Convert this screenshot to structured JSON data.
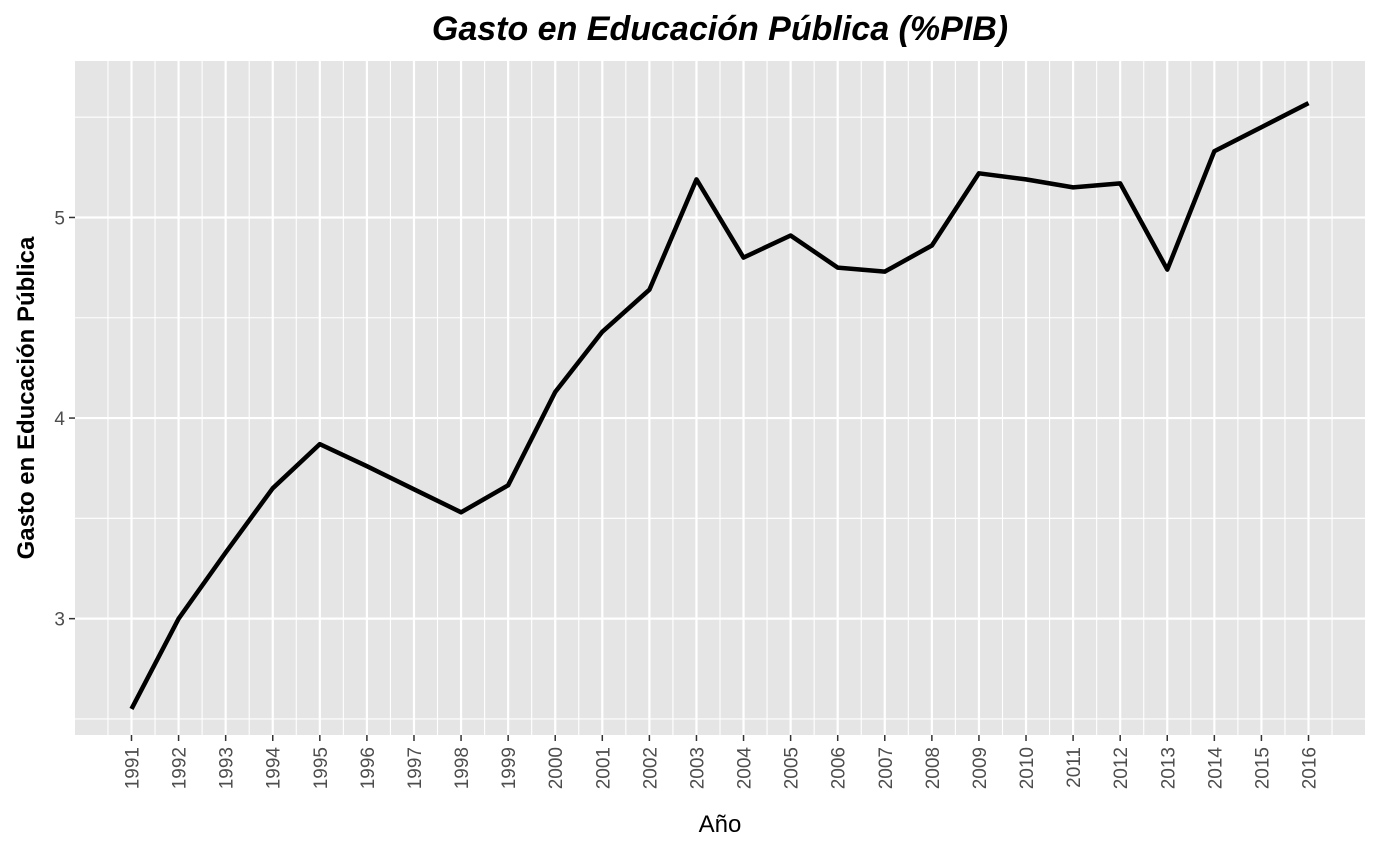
{
  "chart_data": {
    "type": "line",
    "title": "Gasto en Educación Pública (%PIB)",
    "xlabel": "Año",
    "ylabel": "Gasto en Educación Pública",
    "xlim": [
      1989.8,
      2017.2
    ],
    "ylim": [
      2.42,
      5.78
    ],
    "y_ticks": [
      3,
      4,
      5
    ],
    "x_ticks": [
      1991,
      1992,
      1993,
      1994,
      1995,
      1996,
      1997,
      1998,
      1999,
      2000,
      2001,
      2002,
      2003,
      2004,
      2005,
      2006,
      2007,
      2008,
      2009,
      2010,
      2011,
      2012,
      2013,
      2014,
      2015,
      2016
    ],
    "grid": true,
    "legend": "none",
    "colors": {
      "panel": "#e5e5e5",
      "grid": "#ffffff",
      "line": "#000000",
      "tick_text": "#4d4d4d",
      "tick_mark": "#333333"
    },
    "series": [
      {
        "x": [
          1991,
          1992,
          1993,
          1994,
          1995,
          1996,
          1997,
          1998,
          1999,
          2000,
          2001,
          2002,
          2003,
          2004,
          2005,
          2006,
          2007,
          2008,
          2009,
          2010,
          2011,
          2012,
          2013,
          2014,
          2015,
          2016
        ],
        "values": [
          2.55,
          3.0,
          3.33,
          3.65,
          3.87,
          3.76,
          3.645,
          3.53,
          3.665,
          4.13,
          4.43,
          4.64,
          5.19,
          4.8,
          4.91,
          4.75,
          4.73,
          4.86,
          5.22,
          5.19,
          5.15,
          5.17,
          4.74,
          5.33,
          5.45,
          5.57
        ]
      }
    ]
  }
}
